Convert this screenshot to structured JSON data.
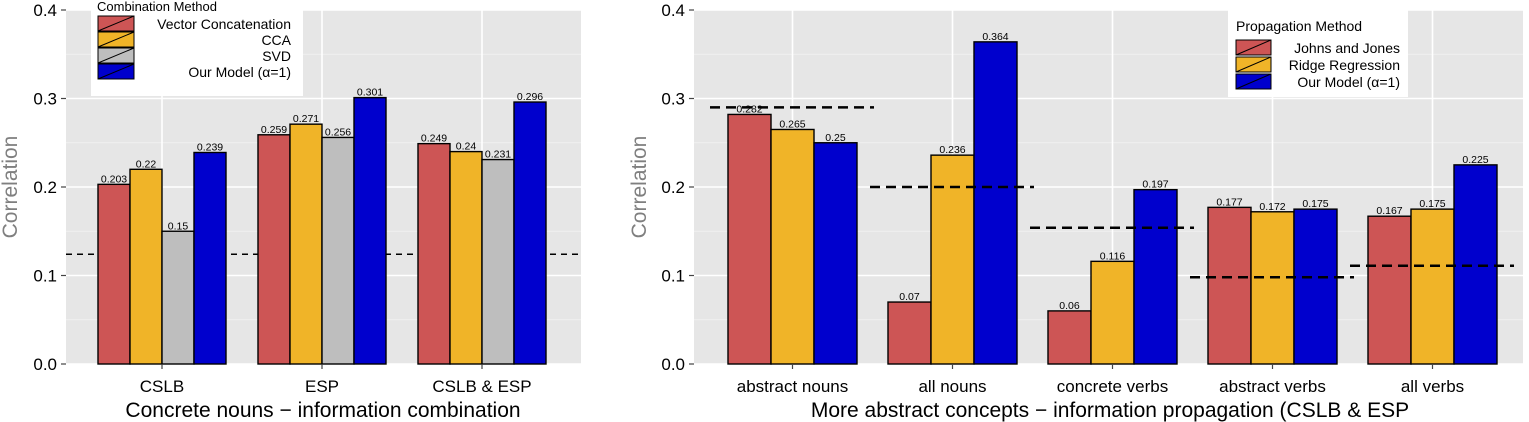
{
  "chart_data": [
    {
      "type": "bar",
      "xlabel": "Concrete nouns − information combination",
      "ylabel": "Correlation",
      "ylim": [
        0,
        0.4
      ],
      "yticks": [
        "0.0",
        "0.1",
        "0.2",
        "0.3",
        "0.4"
      ],
      "grid": true,
      "categories": [
        "CSLB",
        "ESP",
        "CSLB & ESP"
      ],
      "legend": {
        "title": "Combination Method",
        "position": "top-left",
        "entries": [
          "Vector Concatenation",
          "CCA",
          "SVD",
          "Our Model (α=1)"
        ]
      },
      "series": [
        {
          "name": "Vector Concatenation",
          "color": "#cd5555",
          "values": [
            0.203,
            0.259,
            0.249
          ],
          "labels": [
            "0.203",
            "0.259",
            "0.249"
          ]
        },
        {
          "name": "CCA",
          "color": "#f0b428",
          "values": [
            0.22,
            0.271,
            0.24
          ],
          "labels": [
            "0.22",
            "0.271",
            "0.24"
          ]
        },
        {
          "name": "SVD",
          "color": "#bebebe",
          "values": [
            0.15,
            0.256,
            0.231
          ],
          "labels": [
            "0.15",
            "0.256",
            "0.231"
          ]
        },
        {
          "name": "Our Model (α=1)",
          "color": "#0000cd",
          "values": [
            0.239,
            0.301,
            0.296
          ],
          "labels": [
            "0.239",
            "0.301",
            "0.296"
          ]
        }
      ],
      "baseline": [
        0.124
      ]
    },
    {
      "type": "bar",
      "xlabel": "More abstract concepts − information propagation (CSLB & ESP",
      "ylabel": "Correlation",
      "ylim": [
        0,
        0.4
      ],
      "yticks": [
        "0.0",
        "0.1",
        "0.2",
        "0.3",
        "0.4"
      ],
      "grid": true,
      "categories": [
        "abstract nouns",
        "all nouns",
        "concrete verbs",
        "abstract verbs",
        "all verbs"
      ],
      "legend": {
        "title": "Propagation Method",
        "position": "top-right",
        "entries": [
          "Johns and Jones",
          "Ridge Regression",
          "Our Model (α=1)"
        ]
      },
      "series": [
        {
          "name": "Johns and Jones",
          "color": "#cd5555",
          "values": [
            0.282,
            0.07,
            0.06,
            0.177,
            0.167
          ],
          "labels": [
            "0.282",
            "0.07",
            "0.06",
            "0.177",
            "0.167"
          ]
        },
        {
          "name": "Ridge Regression",
          "color": "#f0b428",
          "values": [
            0.265,
            0.236,
            0.116,
            0.172,
            0.175
          ],
          "labels": [
            "0.265",
            "0.236",
            "0.116",
            "0.172",
            "0.175"
          ]
        },
        {
          "name": "Our Model (α=1)",
          "color": "#0000cd",
          "values": [
            0.25,
            0.364,
            0.197,
            0.175,
            0.225
          ],
          "labels": [
            "0.25",
            "0.364",
            "0.197",
            "0.175",
            "0.225"
          ]
        }
      ],
      "baseline": [
        0.29,
        0.2,
        0.154,
        0.098,
        0.111
      ]
    }
  ]
}
